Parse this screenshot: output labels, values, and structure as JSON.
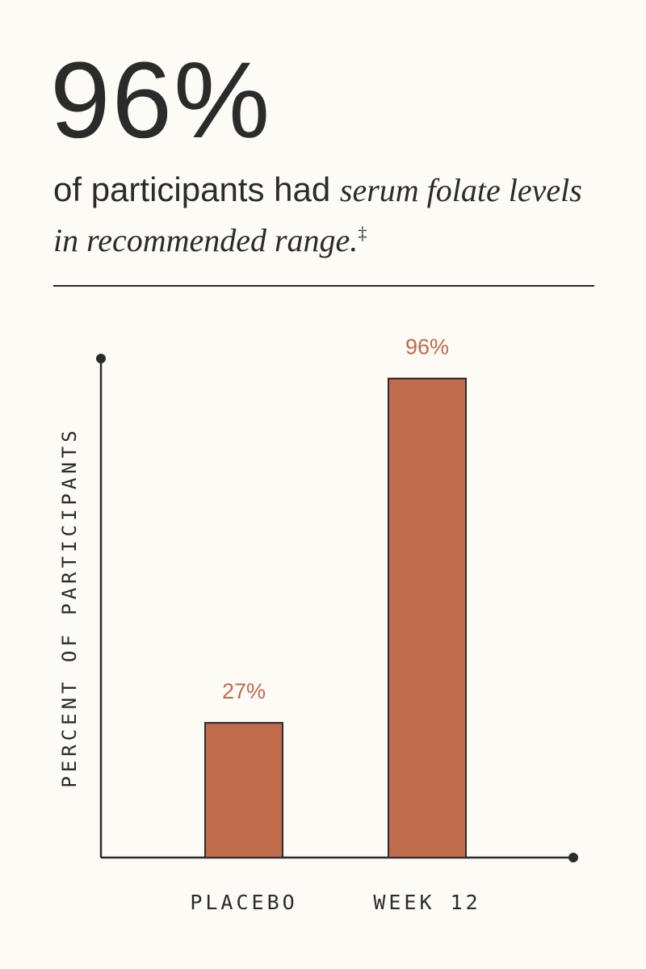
{
  "header": {
    "big_stat": "96%",
    "subtitle_plain": "of participants had ",
    "subtitle_italic": "serum folate levels in recommended range.",
    "subtitle_mark": "‡"
  },
  "colors": {
    "bar": "#bf6b4c",
    "value_label": "#bf6b4c",
    "ink": "#2b2b2b",
    "background": "#fcfbf6"
  },
  "chart_data": {
    "type": "bar",
    "title": "",
    "xlabel": "",
    "ylabel": "PERCENT OF PARTICIPANTS",
    "categories": [
      "PLACEBO",
      "WEEK 12"
    ],
    "values": [
      27,
      96
    ],
    "value_labels": [
      "27%",
      "96%"
    ],
    "ylim": [
      0,
      100
    ],
    "grid": false,
    "legend": "none"
  }
}
